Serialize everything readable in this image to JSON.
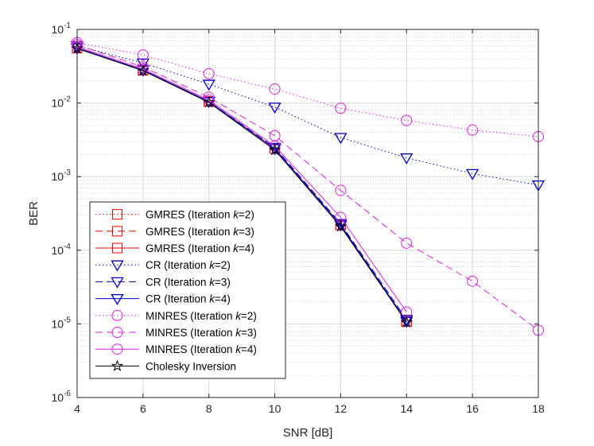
{
  "chart_data": {
    "type": "line",
    "xlabel": "SNR [dB]",
    "ylabel": "BER",
    "xlim": [
      4,
      18
    ],
    "ylim": [
      1e-06,
      0.1
    ],
    "yscale": "log",
    "grid": true,
    "minor_grid": true,
    "legend_position": "bottom-left",
    "x_ticks": [
      "4",
      "6",
      "8",
      "10",
      "12",
      "14",
      "16",
      "18"
    ],
    "y_ticks": [
      {
        "base": "10",
        "exp": "-6"
      },
      {
        "base": "10",
        "exp": "-5"
      },
      {
        "base": "10",
        "exp": "-4"
      },
      {
        "base": "10",
        "exp": "-3"
      },
      {
        "base": "10",
        "exp": "-2"
      },
      {
        "base": "10",
        "exp": "-1"
      }
    ],
    "series": [
      {
        "name_prefix": "GMRES (Iteration ",
        "name_k": "k",
        "name_suffix": "=2)",
        "color": "#ff0000",
        "dash": "dotted",
        "marker": "square",
        "x": [
          4,
          6,
          8,
          10,
          12,
          14
        ],
        "y": [
          0.056,
          0.028,
          0.0105,
          0.0024,
          0.00022,
          1.08e-05
        ]
      },
      {
        "name_prefix": "GMRES (Iteration ",
        "name_k": "k",
        "name_suffix": "=3)",
        "color": "#ff0000",
        "dash": "dashed",
        "marker": "square",
        "x": [
          4,
          6,
          8,
          10,
          12,
          14
        ],
        "y": [
          0.056,
          0.028,
          0.0105,
          0.0024,
          0.00022,
          1.08e-05
        ]
      },
      {
        "name_prefix": "GMRES (Iteration ",
        "name_k": "k",
        "name_suffix": "=4)",
        "color": "#ff0000",
        "dash": "solid",
        "marker": "square",
        "x": [
          4,
          6,
          8,
          10,
          12,
          14
        ],
        "y": [
          0.056,
          0.028,
          0.0105,
          0.0024,
          0.00022,
          1.08e-05
        ]
      },
      {
        "name_prefix": "CR (Iteration ",
        "name_k": "k",
        "name_suffix": "=2)",
        "color": "#0000cc",
        "dash": "dotted",
        "marker": "triangle-down",
        "x": [
          4,
          6,
          8,
          10,
          12,
          14,
          16,
          18
        ],
        "y": [
          0.06,
          0.035,
          0.018,
          0.0088,
          0.0034,
          0.0018,
          0.0011,
          0.00077
        ]
      },
      {
        "name_prefix": "CR (Iteration ",
        "name_k": "k",
        "name_suffix": "=3)",
        "color": "#0000cc",
        "dash": "dashed",
        "marker": "triangle-down",
        "x": [
          4,
          6,
          8,
          10,
          12,
          14
        ],
        "y": [
          0.056,
          0.028,
          0.0105,
          0.0025,
          0.00023,
          1.15e-05
        ]
      },
      {
        "name_prefix": "CR (Iteration ",
        "name_k": "k",
        "name_suffix": "=4)",
        "color": "#0000cc",
        "dash": "solid",
        "marker": "triangle-down",
        "x": [
          4,
          6,
          8,
          10,
          12,
          14
        ],
        "y": [
          0.056,
          0.028,
          0.0105,
          0.0024,
          0.00022,
          1.08e-05
        ]
      },
      {
        "name_prefix": "MINRES (Iteration ",
        "name_k": "k",
        "name_suffix": "=2)",
        "color": "#e020e0",
        "dash": "dotted",
        "marker": "circle",
        "x": [
          4,
          6,
          8,
          10,
          12,
          14,
          16,
          18
        ],
        "y": [
          0.066,
          0.045,
          0.025,
          0.0155,
          0.0085,
          0.0058,
          0.0043,
          0.0035
        ]
      },
      {
        "name_prefix": "MINRES (Iteration ",
        "name_k": "k",
        "name_suffix": "=3)",
        "color": "#e020e0",
        "dash": "dashed",
        "marker": "circle",
        "x": [
          4,
          6,
          8,
          10,
          12,
          14,
          16,
          18
        ],
        "y": [
          0.062,
          0.031,
          0.012,
          0.0036,
          0.00065,
          0.000125,
          3.8e-05,
          8.2e-06
        ]
      },
      {
        "name_prefix": "MINRES (Iteration ",
        "name_k": "k",
        "name_suffix": "=4)",
        "color": "#e020e0",
        "dash": "solid",
        "marker": "circle",
        "x": [
          4,
          6,
          8,
          10,
          12,
          14
        ],
        "y": [
          0.058,
          0.029,
          0.011,
          0.0026,
          0.00028,
          1.45e-05
        ]
      },
      {
        "name_prefix": "Cholesky Inversion",
        "name_k": "",
        "name_suffix": "",
        "color": "#000000",
        "dash": "solid",
        "marker": "star",
        "x": [
          4,
          6,
          8,
          10,
          12,
          14
        ],
        "y": [
          0.055,
          0.0275,
          0.0102,
          0.0023,
          0.00021,
          1.05e-05
        ]
      }
    ]
  }
}
